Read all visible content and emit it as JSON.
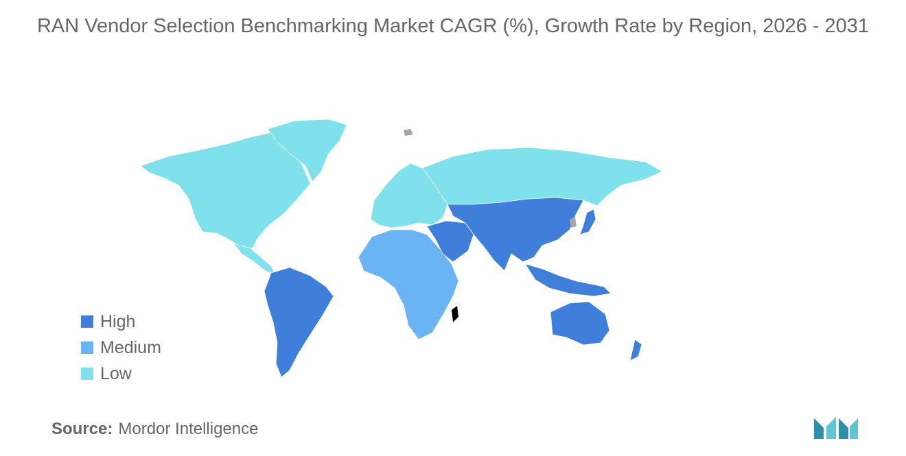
{
  "title": "RAN Vendor Selection Benchmarking Market CAGR (%), Growth Rate by Region, 2026 - 2031",
  "legend": [
    {
      "label": "High",
      "color": "#3f7fdb"
    },
    {
      "label": "Medium",
      "color": "#6ab3f5"
    },
    {
      "label": "Low",
      "color": "#7fe1ec"
    }
  ],
  "regions": [
    {
      "name": "North America",
      "level": "Low"
    },
    {
      "name": "Greenland",
      "level": "Low"
    },
    {
      "name": "Central America",
      "level": "Low"
    },
    {
      "name": "South America",
      "level": "High"
    },
    {
      "name": "Europe",
      "level": "Low"
    },
    {
      "name": "Russia",
      "level": "Low"
    },
    {
      "name": "Africa",
      "level": "Medium"
    },
    {
      "name": "Middle East",
      "level": "High"
    },
    {
      "name": "Asia",
      "level": "High"
    },
    {
      "name": "Japan",
      "level": "High"
    },
    {
      "name": "Southeast Asia",
      "level": "High"
    },
    {
      "name": "Australia",
      "level": "High"
    },
    {
      "name": "New Zealand",
      "level": "High"
    }
  ],
  "colors": {
    "no_data": "#a6a6a6",
    "text": "#666666"
  },
  "source": {
    "label": "Source:",
    "value": "Mordor Intelligence"
  },
  "logo_icon": "mordor-intelligence-logo"
}
